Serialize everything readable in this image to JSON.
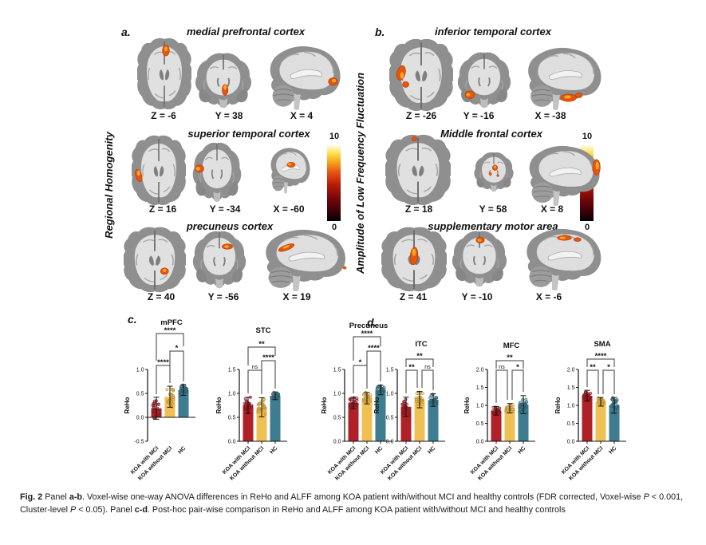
{
  "figure": {
    "panels": {
      "a": {
        "label": "a.",
        "axis_label": "Regional Homogenity",
        "colorbar": {
          "max": "10",
          "min": "0"
        },
        "rows": [
          {
            "title": "medial prefrontal cortex",
            "coords": [
              "Z = -6",
              "Y = 38",
              "X = 4"
            ]
          },
          {
            "title": "superior temporal cortex",
            "coords": [
              "Z = 16",
              "Y = -34",
              "X = -60"
            ]
          },
          {
            "title": "precuneus cortex",
            "coords": [
              "Z = 40",
              "Y = -56",
              "X = 19"
            ]
          }
        ]
      },
      "b": {
        "label": "b.",
        "axis_label": "Amplitude of Low Frequency Fluctuation",
        "colorbar": {
          "max": "10",
          "min": "0"
        },
        "rows": [
          {
            "title": "inferior temporal cortex",
            "coords": [
              "Z = -26",
              "Y = -16",
              "X = -38"
            ]
          },
          {
            "title": "Middle frontal cortex",
            "coords": [
              "Z = 18",
              "Y = 58",
              "X = 8"
            ]
          },
          {
            "title": "supplementary motor area",
            "coords": [
              "Z = 41",
              "Y = -10",
              "X = -6"
            ]
          }
        ]
      },
      "c": {
        "label": "c."
      },
      "d": {
        "label": "d."
      }
    }
  },
  "colors": {
    "bars": [
      "#B02127",
      "#EFC053",
      "#3E7C8F"
    ],
    "dot_strokes": [
      "#7E161C",
      "#B98A2E",
      "#2A5A69"
    ],
    "activation": "#E8540A",
    "activation_core": "#F9A825",
    "axis": "#111111"
  },
  "chart_data": [
    {
      "panel": "c",
      "type": "bar",
      "title": "mPFC",
      "ylabel": "ReHo",
      "categories": [
        "KOA with MCI",
        "KOA without MCI",
        "HC"
      ],
      "values": [
        0.19,
        0.43,
        0.57
      ],
      "errors": [
        0.23,
        0.22,
        0.11
      ],
      "ylim": [
        -0.5,
        1.0
      ],
      "yticks": [
        -0.5,
        0.0,
        0.5,
        1.0
      ],
      "title_y": 17,
      "brackets": [
        {
          "pair": [
            0,
            2
          ],
          "label": "****",
          "y": 28,
          "drops": [
            62,
            44
          ]
        },
        {
          "pair": [
            1,
            2
          ],
          "label": "*",
          "y": 50,
          "drops": [
            90,
            88
          ]
        },
        {
          "pair": [
            0,
            1
          ],
          "label": "****",
          "y": 68,
          "drops": [
            104,
            90
          ]
        }
      ]
    },
    {
      "panel": "c",
      "type": "bar",
      "title": "STC",
      "ylabel": "ReHo",
      "categories": [
        "KOA with MCI",
        "KOA without MCI",
        "HC"
      ],
      "values": [
        0.75,
        0.71,
        0.95
      ],
      "errors": [
        0.17,
        0.2,
        0.08
      ],
      "ylim": [
        0.0,
        1.5
      ],
      "yticks": [
        0.0,
        0.5,
        1.0,
        1.5
      ],
      "title_y": 27,
      "brackets": [
        {
          "pair": [
            0,
            2
          ],
          "label": "**",
          "y": 45,
          "drops": [
            68,
            56
          ]
        },
        {
          "pair": [
            1,
            2
          ],
          "label": "****",
          "y": 62,
          "drops": [
            104,
            97
          ]
        },
        {
          "pair": [
            0,
            1
          ],
          "label": "ns",
          "y": 74,
          "drops": [
            103,
            104
          ]
        }
      ]
    },
    {
      "panel": "c",
      "type": "bar",
      "title": "Precuneus",
      "ylabel": "ReHo",
      "categories": [
        "KOA with MCI",
        "KOA without MCI",
        "HC"
      ],
      "values": [
        0.8,
        0.9,
        1.07
      ],
      "errors": [
        0.12,
        0.12,
        0.1
      ],
      "ylim": [
        0.0,
        1.5
      ],
      "yticks": [
        0.0,
        0.5,
        1.0,
        1.5
      ],
      "title_y": 21,
      "brackets": [
        {
          "pair": [
            0,
            2
          ],
          "label": "****",
          "y": 32,
          "drops": [
            62,
            44
          ]
        },
        {
          "pair": [
            1,
            2
          ],
          "label": "****",
          "y": 50,
          "drops": [
            97,
            88
          ]
        },
        {
          "pair": [
            0,
            1
          ],
          "label": "*",
          "y": 68,
          "drops": [
            103,
            97
          ]
        }
      ]
    },
    {
      "panel": "d",
      "type": "bar",
      "title": "ITC",
      "ylabel": "ReHo",
      "categories": [
        "KOA with MCI",
        "KOA without MCI",
        "HC"
      ],
      "values": [
        0.72,
        0.87,
        0.86
      ],
      "errors": [
        0.2,
        0.17,
        0.13
      ],
      "ylim": [
        0.0,
        1.5
      ],
      "yticks": [
        0.0,
        0.5,
        1.0,
        1.5
      ],
      "title_y": 44,
      "brackets": [
        {
          "pair": [
            0,
            2
          ],
          "label": "**",
          "y": 60,
          "drops": [
            70,
            70
          ]
        },
        {
          "pair": [
            0,
            1
          ],
          "label": "**",
          "y": 74,
          "drops": [
            103,
            96
          ],
          "xoff": [
            0,
            -3
          ]
        },
        {
          "pair": [
            1,
            2
          ],
          "label": "ns",
          "y": 74,
          "drops": [
            96,
            99
          ],
          "xoff": [
            3,
            0
          ]
        }
      ]
    },
    {
      "panel": "d",
      "type": "bar",
      "title": "MFC",
      "ylabel": "ReHo",
      "categories": [
        "KOA with MCI",
        "KOA without MCI",
        "HC"
      ],
      "values": [
        0.85,
        0.92,
        1.02
      ],
      "errors": [
        0.12,
        0.13,
        0.25
      ],
      "ylim": [
        0.0,
        2.0
      ],
      "yticks": [
        0.0,
        0.5,
        1.0,
        1.5,
        2.0
      ],
      "title_y": 46,
      "brackets": [
        {
          "pair": [
            0,
            2
          ],
          "label": "**",
          "y": 62,
          "drops": [
            72,
            72
          ]
        },
        {
          "pair": [
            0,
            1
          ],
          "label": "ns",
          "y": 74,
          "drops": [
            115,
            111
          ],
          "xoff": [
            0,
            -3
          ]
        },
        {
          "pair": [
            1,
            2
          ],
          "label": "*",
          "y": 74,
          "drops": [
            111,
            101
          ],
          "xoff": [
            3,
            0
          ]
        }
      ]
    },
    {
      "panel": "d",
      "type": "bar",
      "title": "SMA",
      "ylabel": "ReHo",
      "categories": [
        "KOA with MCI",
        "KOA without MCI",
        "HC"
      ],
      "values": [
        1.27,
        1.1,
        1.0
      ],
      "errors": [
        0.15,
        0.12,
        0.22
      ],
      "ylim": [
        0.0,
        2.0
      ],
      "yticks": [
        0.0,
        0.5,
        1.0,
        1.5,
        2.0
      ],
      "title_y": 44,
      "brackets": [
        {
          "pair": [
            0,
            2
          ],
          "label": "****",
          "y": 60,
          "drops": [
            70,
            70
          ]
        },
        {
          "pair": [
            0,
            1
          ],
          "label": "**",
          "y": 74,
          "drops": [
            95,
            104
          ],
          "xoff": [
            0,
            -3
          ]
        },
        {
          "pair": [
            1,
            2
          ],
          "label": "*",
          "y": 74,
          "drops": [
            104,
            104
          ],
          "xoff": [
            3,
            0
          ]
        }
      ]
    }
  ],
  "caption": {
    "segments": [
      {
        "t": "Fig. 2",
        "b": 1
      },
      {
        "t": "  Panel "
      },
      {
        "t": "a-b",
        "b": 1
      },
      {
        "t": ". Voxel-wise one-way ANOVA differences in ReHo and ALFF among KOA patient with/without MCI and healthy controls (FDR corrected, Voxel-wise "
      },
      {
        "t": "P",
        "i": 1
      },
      {
        "t": " < 0.001, Cluster-level "
      },
      {
        "t": "P",
        "i": 1
      },
      {
        "t": " < 0.05). Panel "
      },
      {
        "t": "c-d",
        "b": 1
      },
      {
        "t": ". Post-hoc pair-wise comparison in ReHo and ALFF among KOA patient with/without MCI and healthy controls"
      }
    ]
  }
}
